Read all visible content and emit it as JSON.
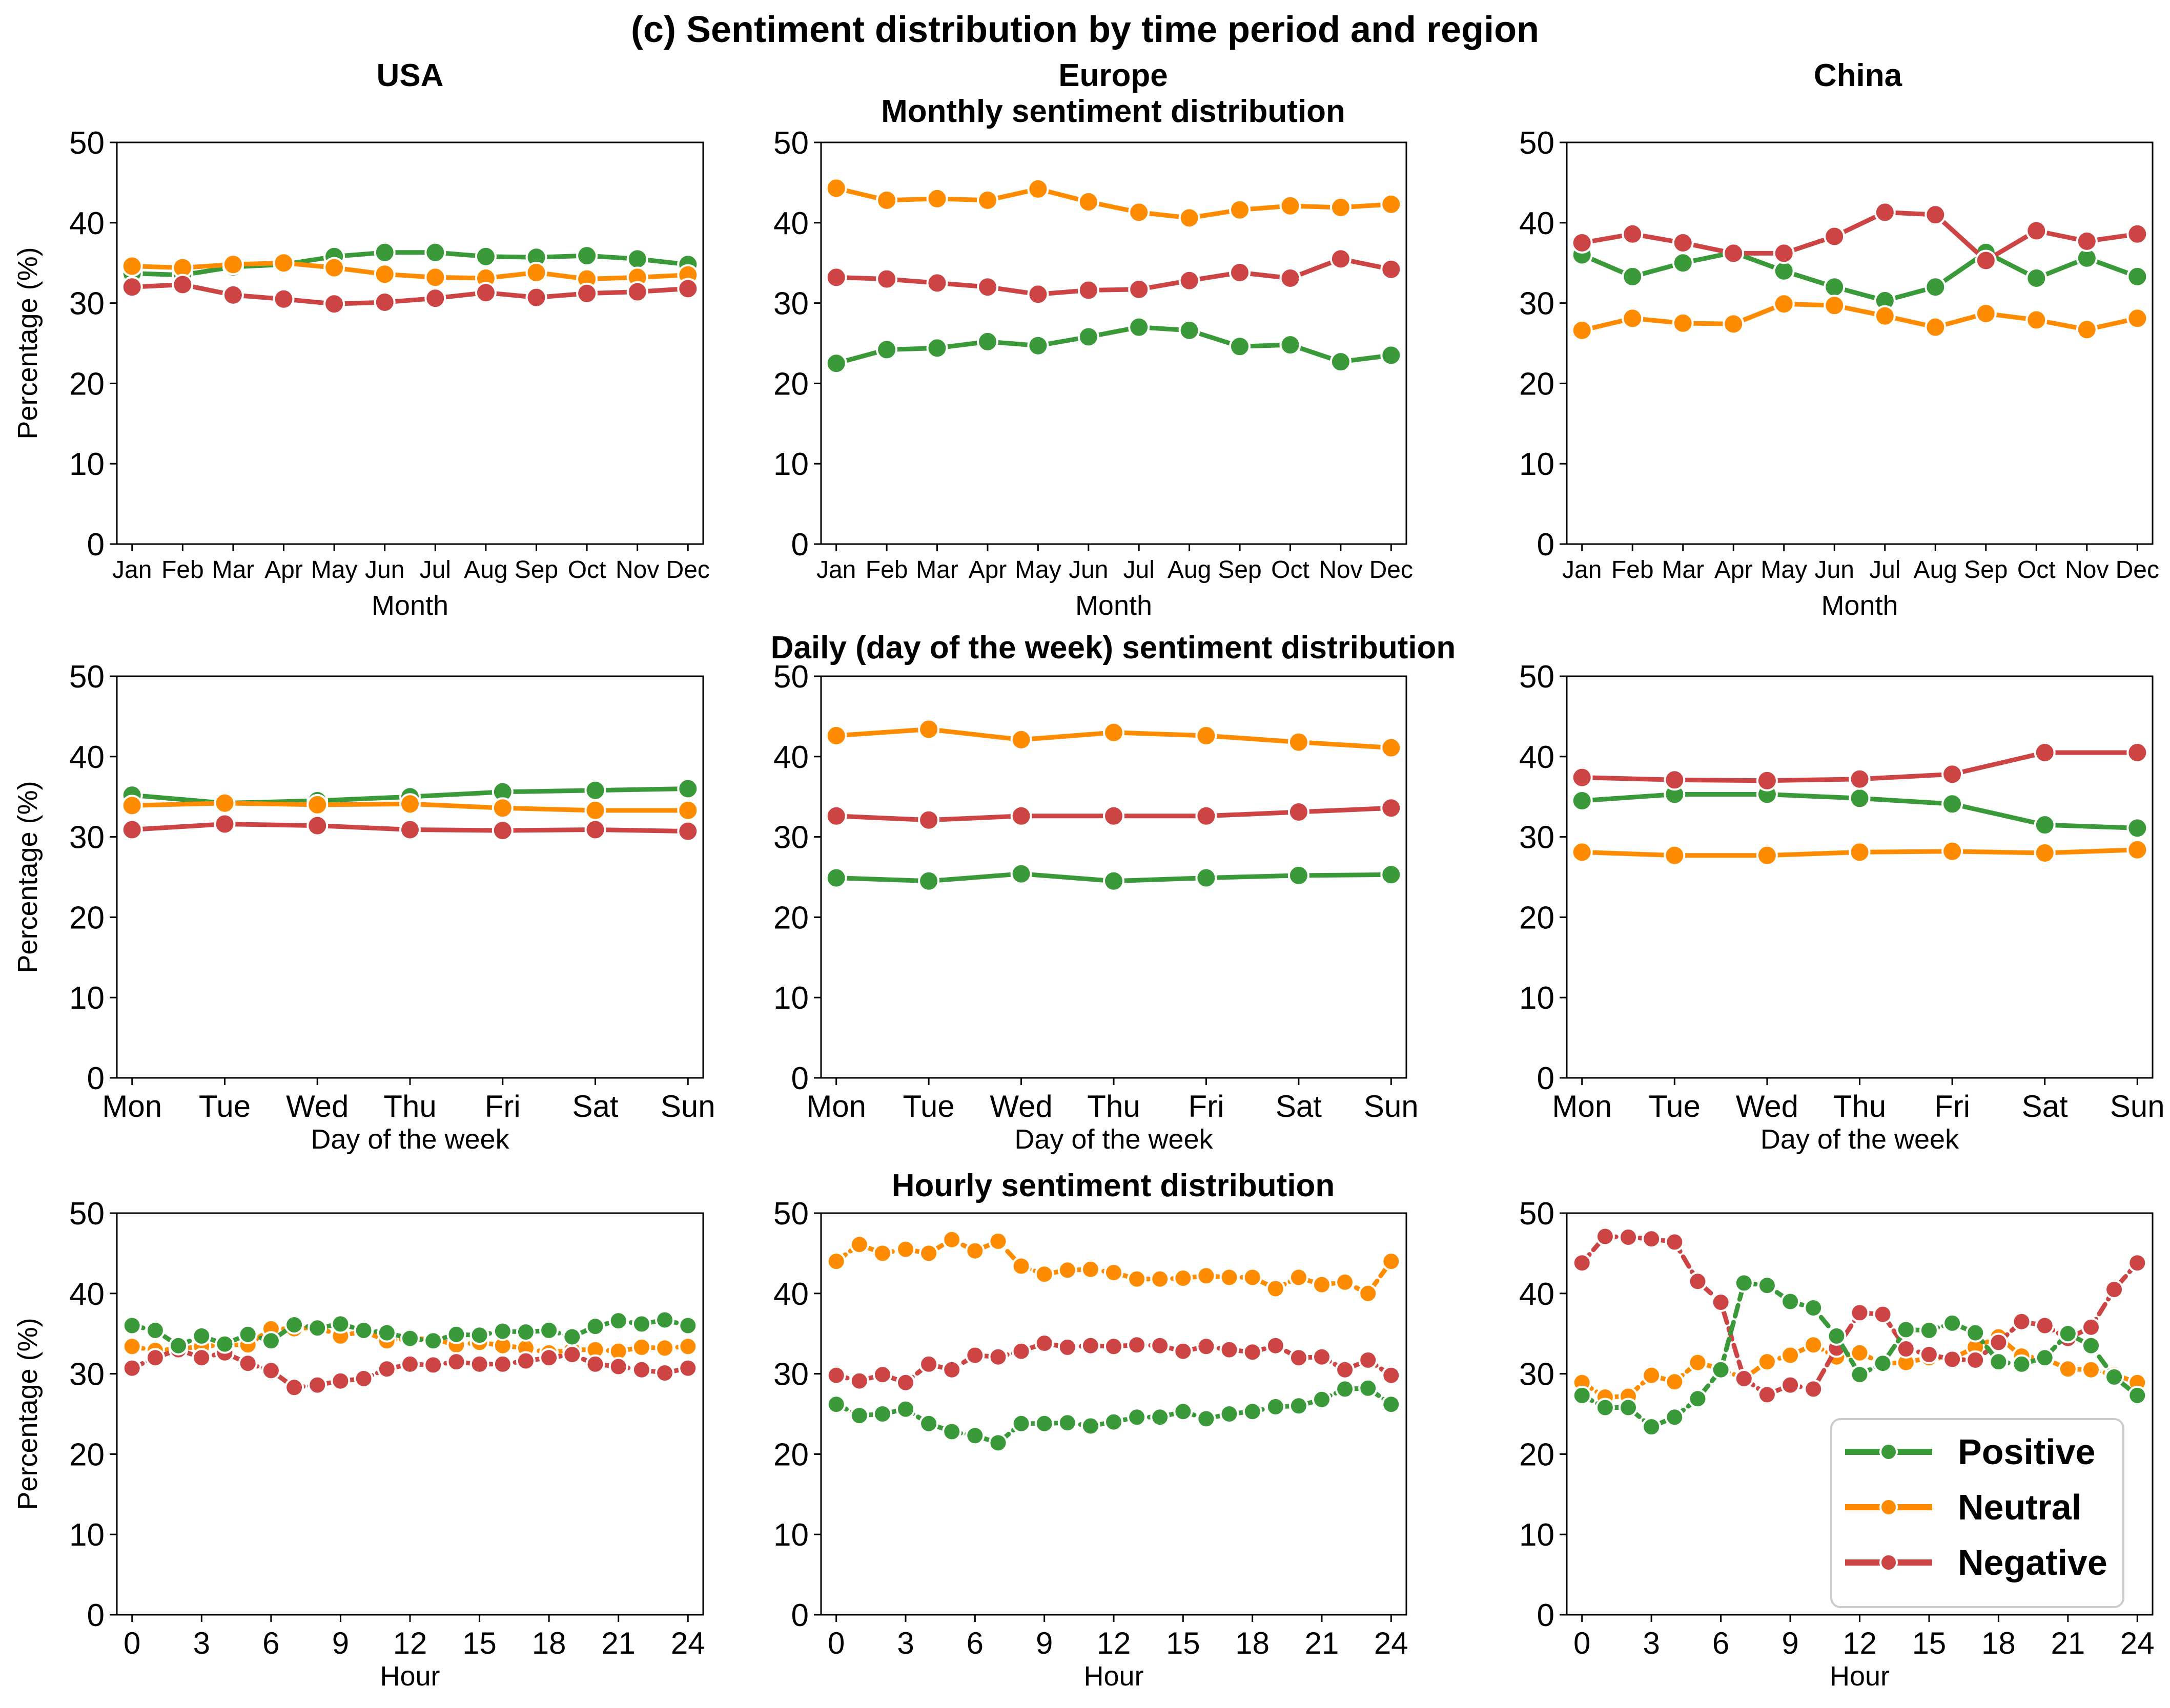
{
  "figure": {
    "suptitle": "(c) Sentiment distribution by time period and region",
    "regions": [
      "USA",
      "Europe",
      "China"
    ],
    "row_titles": [
      "Monthly sentiment distribution",
      "Daily (day of the week) sentiment distribution",
      "Hourly sentiment distribution"
    ]
  },
  "legend": {
    "placement": "lower-right (China hourly panel)",
    "items": [
      {
        "label": "Positive",
        "color": "#3a9a3a"
      },
      {
        "label": "Neutral",
        "color": "#ff8c00"
      },
      {
        "label": "Negative",
        "color": "#cc4444"
      }
    ]
  },
  "chart_data": [
    {
      "type": "line",
      "region": "USA",
      "period": "monthly",
      "xlabel": "Month",
      "ylabel": "Percentage (%)",
      "ylim": [
        0,
        50
      ],
      "yticks": [
        0,
        10,
        20,
        30,
        40,
        50
      ],
      "categories": [
        "Jan",
        "Feb",
        "Mar",
        "Apr",
        "May",
        "Jun",
        "Jul",
        "Aug",
        "Sep",
        "Oct",
        "Nov",
        "Dec"
      ],
      "series": [
        {
          "name": "Positive",
          "values": [
            33.7,
            33.5,
            34.5,
            34.8,
            35.8,
            36.3,
            36.3,
            35.8,
            35.7,
            35.9,
            35.5,
            34.8
          ]
        },
        {
          "name": "Neutral",
          "values": [
            34.6,
            34.4,
            34.8,
            35.0,
            34.4,
            33.6,
            33.2,
            33.1,
            33.8,
            33.0,
            33.2,
            33.5
          ]
        },
        {
          "name": "Negative",
          "values": [
            32.0,
            32.3,
            31.0,
            30.5,
            29.9,
            30.1,
            30.6,
            31.3,
            30.7,
            31.2,
            31.4,
            31.8
          ]
        }
      ]
    },
    {
      "type": "line",
      "region": "Europe",
      "period": "monthly",
      "xlabel": "Month",
      "ylabel": "",
      "ylim": [
        0,
        50
      ],
      "yticks": [
        0,
        10,
        20,
        30,
        40,
        50
      ],
      "categories": [
        "Jan",
        "Feb",
        "Mar",
        "Apr",
        "May",
        "Jun",
        "Jul",
        "Aug",
        "Sep",
        "Oct",
        "Nov",
        "Dec"
      ],
      "series": [
        {
          "name": "Positive",
          "values": [
            22.5,
            24.2,
            24.4,
            25.2,
            24.7,
            25.8,
            27.0,
            26.6,
            24.6,
            24.8,
            22.7,
            23.5
          ]
        },
        {
          "name": "Neutral",
          "values": [
            44.3,
            42.8,
            43.0,
            42.8,
            44.2,
            42.6,
            41.3,
            40.6,
            41.6,
            42.1,
            41.9,
            42.3
          ]
        },
        {
          "name": "Negative",
          "values": [
            33.2,
            33.0,
            32.5,
            32.0,
            31.1,
            31.6,
            31.7,
            32.8,
            33.8,
            33.1,
            35.5,
            34.2
          ]
        }
      ]
    },
    {
      "type": "line",
      "region": "China",
      "period": "monthly",
      "xlabel": "Month",
      "ylabel": "",
      "ylim": [
        0,
        50
      ],
      "yticks": [
        0,
        10,
        20,
        30,
        40,
        50
      ],
      "categories": [
        "Jan",
        "Feb",
        "Mar",
        "Apr",
        "May",
        "Jun",
        "Jul",
        "Aug",
        "Sep",
        "Oct",
        "Nov",
        "Dec"
      ],
      "series": [
        {
          "name": "Positive",
          "values": [
            36.0,
            33.3,
            35.0,
            36.3,
            34.0,
            32.0,
            30.3,
            32.0,
            36.3,
            33.1,
            35.6,
            33.3
          ]
        },
        {
          "name": "Neutral",
          "values": [
            26.6,
            28.1,
            27.5,
            27.4,
            29.9,
            29.7,
            28.4,
            27.0,
            28.7,
            27.9,
            26.7,
            28.1
          ]
        },
        {
          "name": "Negative",
          "values": [
            37.5,
            38.6,
            37.5,
            36.2,
            36.2,
            38.3,
            41.3,
            41.0,
            35.3,
            39.0,
            37.7,
            38.6
          ]
        }
      ]
    },
    {
      "type": "line",
      "region": "USA",
      "period": "daily",
      "xlabel": "Day of the week",
      "ylabel": "Percentage (%)",
      "ylim": [
        0,
        50
      ],
      "yticks": [
        0,
        10,
        20,
        30,
        40,
        50
      ],
      "categories": [
        "Mon",
        "Tue",
        "Wed",
        "Thu",
        "Fri",
        "Sat",
        "Sun"
      ],
      "series": [
        {
          "name": "Positive",
          "values": [
            35.2,
            34.2,
            34.5,
            35.0,
            35.6,
            35.8,
            36.0
          ]
        },
        {
          "name": "Neutral",
          "values": [
            33.9,
            34.2,
            34.0,
            34.1,
            33.6,
            33.3,
            33.3
          ]
        },
        {
          "name": "Negative",
          "values": [
            30.9,
            31.6,
            31.4,
            30.9,
            30.8,
            30.9,
            30.7
          ]
        }
      ]
    },
    {
      "type": "line",
      "region": "Europe",
      "period": "daily",
      "xlabel": "Day of the week",
      "ylabel": "",
      "ylim": [
        0,
        50
      ],
      "yticks": [
        0,
        10,
        20,
        30,
        40,
        50
      ],
      "categories": [
        "Mon",
        "Tue",
        "Wed",
        "Thu",
        "Fri",
        "Sat",
        "Sun"
      ],
      "series": [
        {
          "name": "Positive",
          "values": [
            24.9,
            24.5,
            25.4,
            24.5,
            24.9,
            25.2,
            25.3
          ]
        },
        {
          "name": "Neutral",
          "values": [
            42.6,
            43.4,
            42.1,
            43.0,
            42.6,
            41.8,
            41.1
          ]
        },
        {
          "name": "Negative",
          "values": [
            32.6,
            32.1,
            32.6,
            32.6,
            32.6,
            33.1,
            33.6
          ]
        }
      ]
    },
    {
      "type": "line",
      "region": "China",
      "period": "daily",
      "xlabel": "Day of the week",
      "ylabel": "",
      "ylim": [
        0,
        50
      ],
      "yticks": [
        0,
        10,
        20,
        30,
        40,
        50
      ],
      "categories": [
        "Mon",
        "Tue",
        "Wed",
        "Thu",
        "Fri",
        "Sat",
        "Sun"
      ],
      "series": [
        {
          "name": "Positive",
          "values": [
            34.5,
            35.3,
            35.3,
            34.8,
            34.1,
            31.5,
            31.1
          ]
        },
        {
          "name": "Neutral",
          "values": [
            28.1,
            27.7,
            27.7,
            28.1,
            28.2,
            28.0,
            28.4
          ]
        },
        {
          "name": "Negative",
          "values": [
            37.4,
            37.1,
            37.0,
            37.2,
            37.8,
            40.5,
            40.5
          ]
        }
      ]
    },
    {
      "type": "line",
      "region": "USA",
      "period": "hourly",
      "xlabel": "Hour",
      "ylabel": "Percentage (%)",
      "ylim": [
        0,
        50
      ],
      "yticks": [
        0,
        10,
        20,
        30,
        40,
        50
      ],
      "x": [
        0,
        1,
        2,
        3,
        4,
        5,
        6,
        7,
        8,
        9,
        10,
        11,
        12,
        13,
        14,
        15,
        16,
        17,
        18,
        19,
        20,
        21,
        22,
        23,
        24
      ],
      "xticks": [
        0,
        3,
        6,
        9,
        12,
        15,
        18,
        21,
        24
      ],
      "series": [
        {
          "name": "Positive",
          "values": [
            36.0,
            35.4,
            33.5,
            34.7,
            33.7,
            34.9,
            34.1,
            36.1,
            35.7,
            36.2,
            35.4,
            35.1,
            34.4,
            34.1,
            34.9,
            34.8,
            35.3,
            35.2,
            35.4,
            34.6,
            35.9,
            36.6,
            36.2,
            36.7,
            36.0
          ]
        },
        {
          "name": "Neutral",
          "values": [
            33.4,
            32.9,
            33.1,
            33.4,
            33.6,
            33.6,
            35.6,
            35.6,
            35.8,
            34.7,
            35.3,
            34.1,
            34.4,
            34.3,
            33.6,
            33.9,
            33.5,
            33.2,
            32.6,
            33.0,
            33.0,
            32.8,
            33.3,
            33.2,
            33.4
          ]
        },
        {
          "name": "Negative",
          "values": [
            30.7,
            32.0,
            33.0,
            32.0,
            32.6,
            31.3,
            30.4,
            28.3,
            28.6,
            29.1,
            29.4,
            30.6,
            31.2,
            31.1,
            31.5,
            31.2,
            31.2,
            31.6,
            32.0,
            32.4,
            31.2,
            30.9,
            30.5,
            30.1,
            30.7
          ]
        }
      ]
    },
    {
      "type": "line",
      "region": "Europe",
      "period": "hourly",
      "xlabel": "Hour",
      "ylabel": "",
      "ylim": [
        0,
        50
      ],
      "yticks": [
        0,
        10,
        20,
        30,
        40,
        50
      ],
      "x": [
        0,
        1,
        2,
        3,
        4,
        5,
        6,
        7,
        8,
        9,
        10,
        11,
        12,
        13,
        14,
        15,
        16,
        17,
        18,
        19,
        20,
        21,
        22,
        23,
        24
      ],
      "xticks": [
        0,
        3,
        6,
        9,
        12,
        15,
        18,
        21,
        24
      ],
      "series": [
        {
          "name": "Positive",
          "values": [
            26.2,
            24.8,
            25.0,
            25.6,
            23.8,
            22.8,
            22.3,
            21.4,
            23.8,
            23.8,
            23.9,
            23.5,
            24.0,
            24.6,
            24.6,
            25.3,
            24.4,
            25.0,
            25.3,
            25.9,
            26.0,
            26.8,
            28.1,
            28.2,
            26.2
          ]
        },
        {
          "name": "Neutral",
          "values": [
            44.0,
            46.1,
            45.0,
            45.5,
            45.0,
            46.7,
            45.3,
            46.5,
            43.4,
            42.4,
            42.9,
            43.0,
            42.6,
            41.8,
            41.8,
            41.9,
            42.2,
            42.0,
            42.0,
            40.6,
            42.0,
            41.1,
            41.4,
            40.0,
            44.0
          ]
        },
        {
          "name": "Negative",
          "values": [
            29.8,
            29.1,
            29.9,
            28.9,
            31.2,
            30.5,
            32.3,
            32.1,
            32.8,
            33.8,
            33.3,
            33.5,
            33.4,
            33.6,
            33.5,
            32.8,
            33.4,
            33.0,
            32.7,
            33.5,
            32.0,
            32.1,
            30.5,
            31.7,
            29.8
          ]
        }
      ]
    },
    {
      "type": "line",
      "region": "China",
      "period": "hourly",
      "xlabel": "Hour",
      "ylabel": "",
      "ylim": [
        0,
        50
      ],
      "yticks": [
        0,
        10,
        20,
        30,
        40,
        50
      ],
      "x": [
        0,
        1,
        2,
        3,
        4,
        5,
        6,
        7,
        8,
        9,
        10,
        11,
        12,
        13,
        14,
        15,
        16,
        17,
        18,
        19,
        20,
        21,
        22,
        23,
        24
      ],
      "xticks": [
        0,
        3,
        6,
        9,
        12,
        15,
        18,
        21,
        24
      ],
      "series": [
        {
          "name": "Positive",
          "values": [
            27.3,
            25.8,
            25.8,
            23.4,
            24.6,
            26.9,
            30.5,
            41.3,
            41.0,
            39.0,
            38.2,
            34.7,
            29.9,
            31.3,
            35.5,
            35.4,
            36.3,
            35.1,
            31.5,
            31.2,
            32.0,
            35.0,
            33.5,
            29.6,
            27.3
          ]
        },
        {
          "name": "Neutral",
          "values": [
            28.9,
            27.1,
            27.2,
            29.8,
            29.0,
            31.4,
            30.6,
            29.4,
            31.5,
            32.3,
            33.6,
            32.1,
            32.6,
            31.3,
            31.4,
            32.0,
            31.9,
            33.3,
            34.6,
            32.2,
            31.9,
            30.6,
            30.5,
            29.9,
            28.9
          ]
        },
        {
          "name": "Negative",
          "values": [
            43.8,
            47.1,
            47.0,
            46.8,
            46.4,
            41.5,
            38.9,
            29.4,
            27.4,
            28.6,
            28.1,
            33.2,
            37.6,
            37.4,
            33.1,
            32.4,
            31.8,
            31.7,
            33.9,
            36.5,
            36.0,
            34.4,
            35.8,
            40.5,
            43.8
          ]
        }
      ]
    }
  ]
}
